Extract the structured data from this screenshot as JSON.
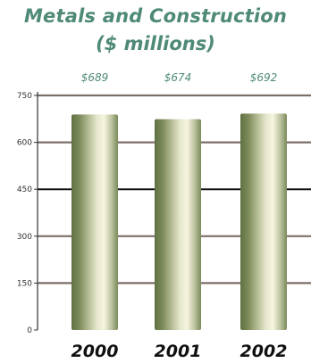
{
  "chart_data": {
    "type": "bar",
    "title": "Metals and Construction",
    "subtitle": "($ millions)",
    "categories": [
      "2000",
      "2001",
      "2002"
    ],
    "values": [
      689,
      674,
      692
    ],
    "data_labels": [
      "$689",
      "$674",
      "$692"
    ],
    "yticks": [
      "0",
      "150",
      "300",
      "450",
      "600",
      "750"
    ],
    "ylim": [
      0,
      750
    ],
    "xlabel": "",
    "ylabel": "",
    "grid": true,
    "legend": "none"
  },
  "colors": {
    "title": "#4f8a78",
    "data_label": "#4f8a78",
    "category_label": "#111111",
    "tick_label": "#333333",
    "gridline": "#7d6f68",
    "midline": "#111111",
    "axis": "#333333",
    "bar_dark": "#6e7f4d",
    "bar_mid": "#b6bd97",
    "bar_light": "#f3f1d9"
  }
}
